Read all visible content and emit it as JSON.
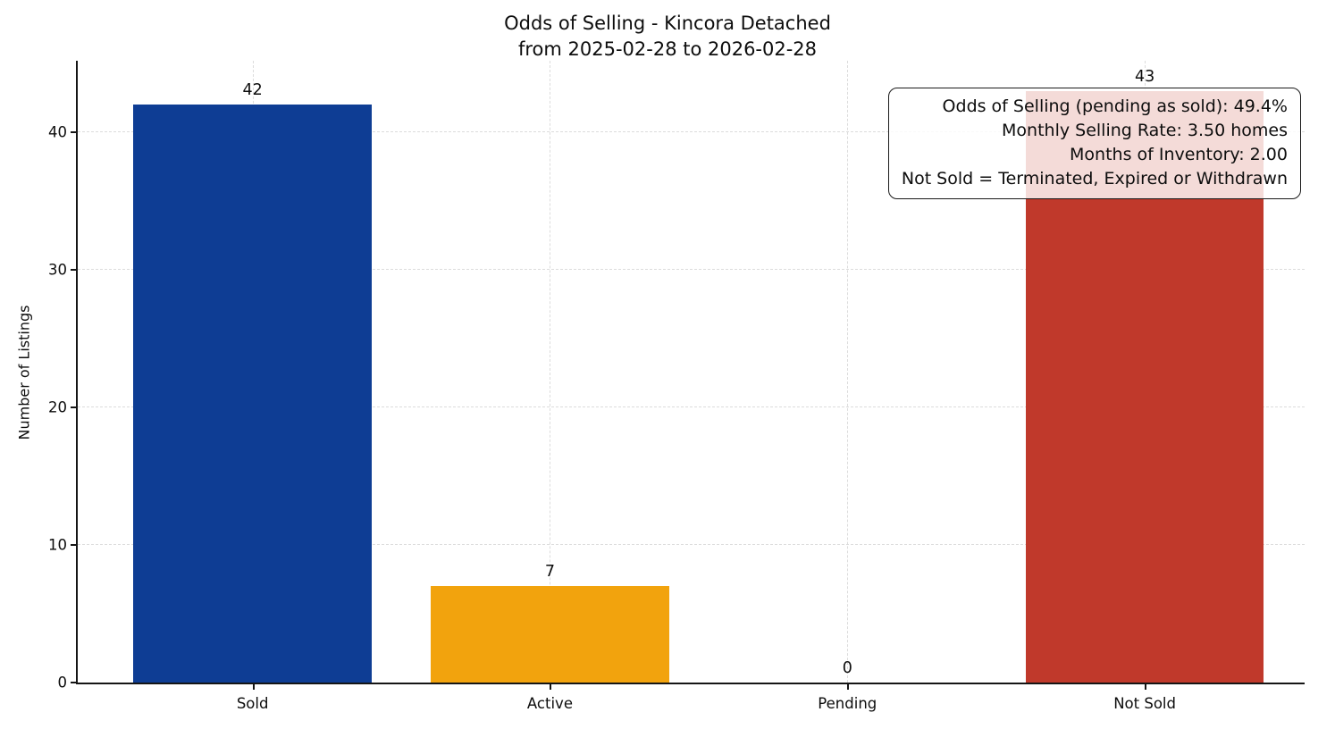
{
  "chart_data": {
    "type": "bar",
    "title": "Odds of Selling - Kincora Detached",
    "subtitle": "from 2025-02-28 to 2026-02-28",
    "ylabel": "Number of Listings",
    "categories": [
      "Sold",
      "Active",
      "Pending",
      "Not Sold"
    ],
    "values": [
      42,
      7,
      0,
      43
    ],
    "value_labels": [
      "42",
      "7",
      "0",
      "43"
    ],
    "bar_colors": [
      "#0e3d94",
      "#f2a30d",
      null,
      "#c0392b"
    ],
    "yticks": [
      0,
      10,
      20,
      30,
      40
    ],
    "ylim": [
      0,
      45.2
    ],
    "grid": "dashed",
    "annotation": {
      "position": "top-right",
      "lines": [
        "Odds of Selling (pending as sold): 49.4%",
        "Monthly Selling Rate: 3.50 homes",
        "Months of Inventory: 2.00",
        "Not Sold = Terminated, Expired or Withdrawn"
      ]
    }
  }
}
